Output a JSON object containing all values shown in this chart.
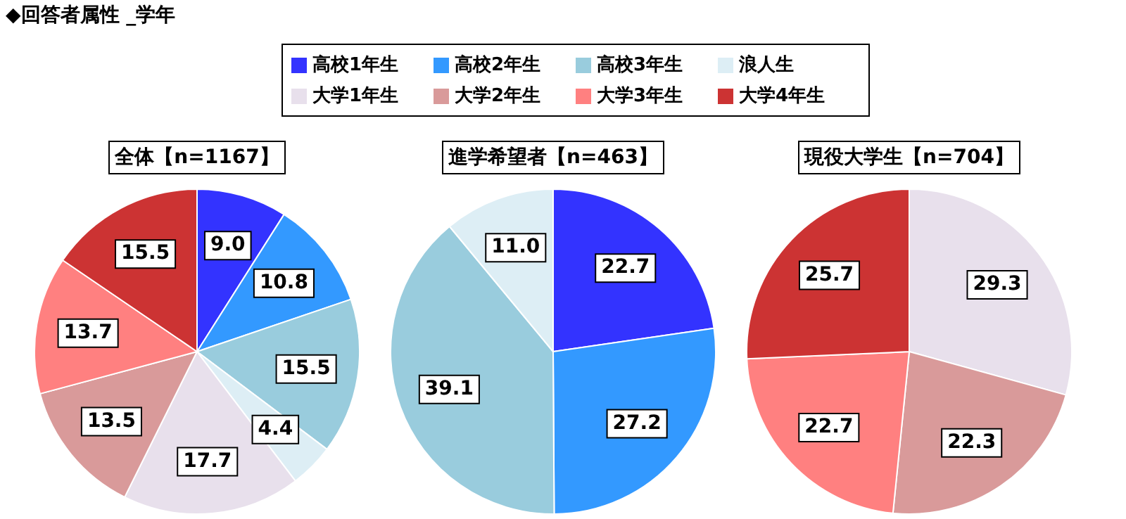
{
  "chart_data": [
    {
      "type": "pie",
      "title": "全体【n=1167】",
      "annotations": [
        "◆回答者属性 _学年"
      ],
      "legend": "top",
      "categories": [
        "高校1年生",
        "高校2年生",
        "高校3年生",
        "浪人生",
        "大学1年生",
        "大学2年生",
        "大学3年生",
        "大学4年生"
      ],
      "values": [
        9.0,
        10.8,
        15.5,
        4.4,
        17.7,
        13.5,
        13.7,
        15.5
      ],
      "value_labels": [
        "9.0",
        "10.8",
        "15.5",
        "4.4",
        "17.7",
        "13.5",
        "13.7",
        "15.5"
      ],
      "colors": [
        "#3333ff",
        "#3399ff",
        "#99ccdd",
        "#ddeef5",
        "#e8e0ec",
        "#d99a9a",
        "#ff8080",
        "#cc3333"
      ]
    },
    {
      "type": "pie",
      "title": "進学希望者【n=463】",
      "categories": [
        null,
        null,
        null,
        null
      ],
      "values": [
        22.7,
        27.2,
        39.1,
        11.0
      ],
      "value_labels": [
        "22.7",
        "27.2",
        "39.1",
        "11.0"
      ],
      "colors": [
        "#3333ff",
        "#3399ff",
        "#99ccdd",
        "#ddeef5"
      ]
    },
    {
      "type": "pie",
      "title": "現役大学生【n=704】",
      "categories": [
        null,
        null,
        null,
        null
      ],
      "values": [
        29.3,
        22.3,
        22.7,
        25.7
      ],
      "value_labels": [
        "29.3",
        "22.3",
        "22.7",
        "25.7"
      ],
      "colors": [
        "#e8e0ec",
        "#d99a9a",
        "#ff8080",
        "#cc3333"
      ]
    }
  ]
}
